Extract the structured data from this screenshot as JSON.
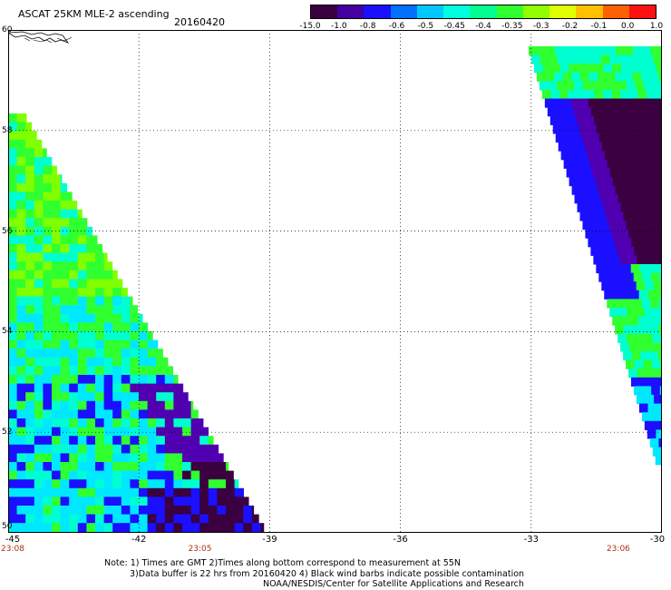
{
  "header": {
    "title": "ASCAT 25KM MLE-2 ascending",
    "date": "20160420"
  },
  "colorbar": {
    "labels": [
      "-15.0",
      "-1.0",
      "-0.8",
      "-0.6",
      "-0.5",
      "-0.45",
      "-0.4",
      "-0.35",
      "-0.3",
      "-0.2",
      "-0.1",
      "0.0",
      "1.0"
    ],
    "colors": [
      "#3a0040",
      "#4400a0",
      "#1a10ff",
      "#0070ff",
      "#00c8ff",
      "#00ffe0",
      "#00ff90",
      "#30ff30",
      "#90ff00",
      "#e0ff00",
      "#ffc000",
      "#ff6000",
      "#ff1010"
    ]
  },
  "axes": {
    "lat_labels": [
      "60",
      "58",
      "56",
      "54",
      "52",
      "50"
    ],
    "lon_labels": [
      "-45",
      "-42",
      "-39",
      "-36",
      "-33",
      "-30"
    ],
    "lat_range": [
      50,
      60
    ],
    "lon_range": [
      -45,
      -30
    ],
    "grid": "dotted"
  },
  "times": [
    {
      "label": "23:08",
      "lon": -45
    },
    {
      "label": "23:05",
      "lon": -40.6
    },
    {
      "label": "23:06",
      "lon": -31.0
    }
  ],
  "notes": [
    "Note: 1) Times are GMT 2)Times along bottom correspond to measurement at 55N",
    "3)Data buffer is 22 hrs from 20160420 4) Black wind barbs indicate possible contamination",
    "NOAA/NESDIS/Center for Satellite Applications and Research"
  ],
  "palette": {
    "dark": "#3a0040",
    "purple": "#5000b0",
    "blue": "#1a10ff",
    "cyan": "#00e8ff",
    "aqua": "#00ffd0",
    "green": "#30ff30",
    "lime": "#80ff00"
  }
}
